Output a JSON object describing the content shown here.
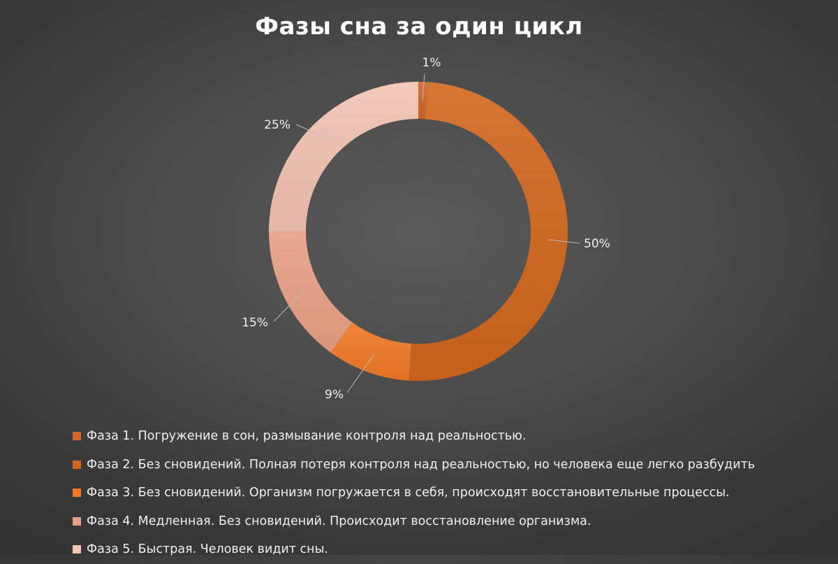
{
  "chart_data": {
    "type": "pie",
    "subtype": "donut",
    "title": "Фазы сна за один цикл",
    "series": [
      {
        "values": [
          1,
          50,
          9,
          15,
          25
        ],
        "labels": [
          "1%",
          "50%",
          "9%",
          "15%",
          "25%"
        ]
      }
    ],
    "categories": [
      "Фаза 1. Погружение в сон, размывание контроля над реальностью.",
      "Фаза 2. Без сновидений. Полная потеря контроля над реальностью, но человека еще легко разбудить",
      "Фаза 3. Без сновидений. Организм погружается в себя, происходят восстановительные процессы.",
      "Фаза 4. Медленная. Без сновидений. Происходит восстановление организма.",
      "Фаза 5. Быстрая. Человек видит сны."
    ],
    "colors": [
      "#d0662a",
      "#d2671f",
      "#f07a27",
      "#e8a186",
      "#f3c3b3"
    ],
    "legend_position": "bottom-left"
  }
}
